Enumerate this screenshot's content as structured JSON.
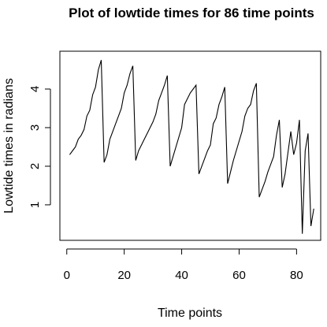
{
  "chart_data": {
    "type": "line",
    "title": "Plot of lowtide times for 86 time points",
    "xlabel": "Time points",
    "ylabel": "Lowtide times in radians",
    "xlim": [
      -2.4,
      88.4
    ],
    "ylim": [
      0.08,
      4.98
    ],
    "x_ticks": [
      0,
      20,
      40,
      60,
      80
    ],
    "y_ticks": [
      1,
      2,
      3,
      4
    ],
    "grid": false,
    "legend": "none",
    "line_color": "#000000",
    "series": [
      {
        "x": [
          1,
          2,
          3,
          4,
          5,
          6,
          7,
          8,
          9,
          10,
          11,
          12,
          13,
          14,
          15,
          16,
          17,
          18,
          19,
          20,
          21,
          22,
          23,
          24,
          25,
          26,
          27,
          28,
          29,
          30,
          31,
          32,
          33,
          34,
          35,
          36,
          37,
          38,
          39,
          40,
          41,
          42,
          43,
          44,
          45,
          46,
          47,
          48,
          49,
          50,
          51,
          52,
          53,
          54,
          55,
          56,
          57,
          58,
          59,
          60,
          61,
          62,
          63,
          64,
          65,
          66,
          67,
          68,
          69,
          70,
          71,
          72,
          73,
          74,
          75,
          76,
          77,
          78,
          79,
          80,
          81,
          82,
          83,
          84,
          85,
          86
        ],
        "y": [
          2.3,
          2.4,
          2.5,
          2.7,
          2.8,
          2.95,
          3.3,
          3.45,
          3.85,
          4.05,
          4.5,
          4.75,
          2.1,
          2.3,
          2.7,
          2.9,
          3.1,
          3.3,
          3.5,
          3.9,
          4.1,
          4.4,
          4.6,
          2.15,
          2.4,
          2.55,
          2.7,
          2.85,
          3.0,
          3.15,
          3.35,
          3.7,
          3.9,
          4.1,
          4.35,
          2.0,
          2.25,
          2.5,
          2.75,
          3.0,
          3.6,
          3.75,
          3.9,
          4.0,
          4.1,
          1.8,
          2.0,
          2.2,
          2.4,
          2.55,
          3.1,
          3.25,
          3.6,
          3.8,
          4.05,
          1.55,
          1.85,
          2.15,
          2.4,
          2.65,
          2.9,
          3.3,
          3.5,
          3.6,
          3.95,
          4.15,
          1.2,
          1.4,
          1.6,
          1.85,
          2.05,
          2.25,
          2.8,
          3.2,
          1.45,
          1.8,
          2.35,
          2.9,
          2.3,
          2.6,
          3.2,
          0.25,
          2.4,
          2.85,
          0.45,
          0.9
        ]
      }
    ]
  }
}
